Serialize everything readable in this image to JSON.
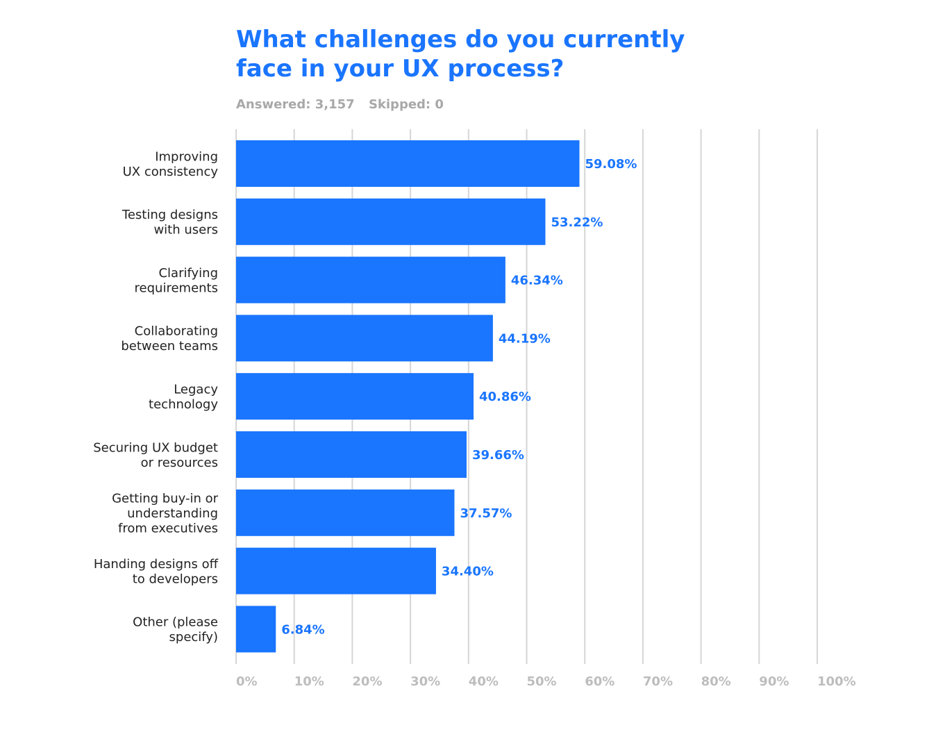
{
  "header": {
    "title": "What challenges do you currently face in your UX process?",
    "answered": "Answered: 3,157",
    "skipped": "Skipped: 0"
  },
  "colors": {
    "accent": "#1a75ff",
    "bar": "#1a75ff",
    "grid": "#d6d6d6",
    "tick_text": "#bdbdbd",
    "meta_text": "#a8a8a8",
    "category_text": "#222222"
  },
  "chart_data": {
    "type": "bar",
    "orientation": "horizontal",
    "title": "What challenges do you currently face in your UX process?",
    "xlabel": "",
    "ylabel": "",
    "xlim": [
      0,
      100
    ],
    "grid": true,
    "legend": "none",
    "categories": [
      [
        "Improving",
        "UX consistency"
      ],
      [
        "Testing designs",
        "with users"
      ],
      [
        "Clarifying",
        "requirements"
      ],
      [
        "Collaborating",
        "between teams"
      ],
      [
        "Legacy",
        "technology"
      ],
      [
        "Securing UX budget",
        "or resources"
      ],
      [
        "Getting buy-in or",
        "understanding",
        "from executives"
      ],
      [
        "Handing designs off",
        "to developers"
      ],
      [
        "Other (please",
        "specify)"
      ]
    ],
    "values": [
      59.08,
      53.22,
      46.34,
      44.19,
      40.86,
      39.66,
      37.57,
      34.4,
      6.84
    ],
    "value_labels": [
      "59.08%",
      "53.22%",
      "46.34%",
      "44.19%",
      "40.86%",
      "39.66%",
      "37.57%",
      "34.40%",
      "6.84%"
    ],
    "ticks": [
      0,
      10,
      20,
      30,
      40,
      50,
      60,
      70,
      80,
      90,
      100
    ],
    "tick_labels": [
      "0%",
      "10%",
      "20%",
      "30%",
      "40%",
      "50%",
      "60%",
      "70%",
      "80%",
      "90%",
      "100%"
    ]
  }
}
